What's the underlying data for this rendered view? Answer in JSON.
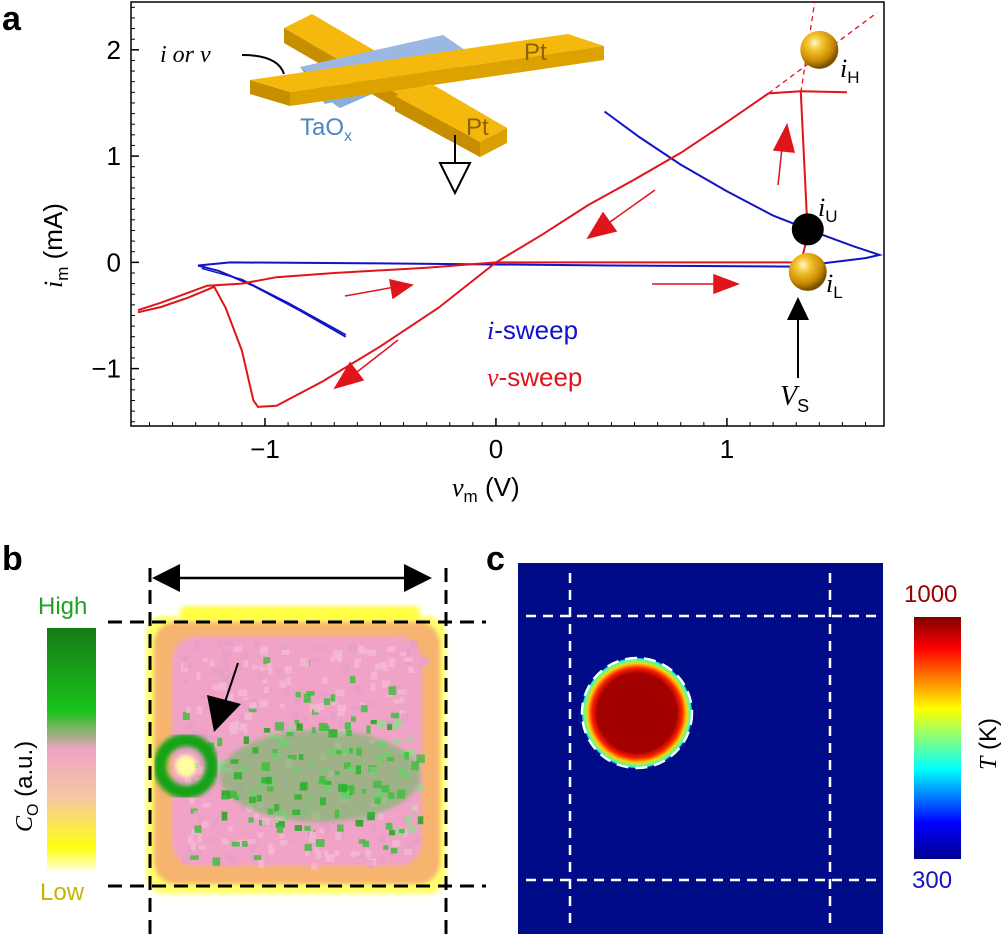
{
  "chart_data": [
    {
      "panel": "a",
      "type": "line",
      "xlabel_sym": "v",
      "xlabel_sub": "m",
      "xlabel_unit": " (V)",
      "ylabel_sym": "i",
      "ylabel_sub": "m",
      "ylabel_unit": " (mA)",
      "xlim": [
        -1.58,
        1.68
      ],
      "ylim": [
        -1.54,
        2.45
      ],
      "xticks": [
        -1,
        0,
        1
      ],
      "xtick_labels": [
        "−1",
        "0",
        "1"
      ],
      "yticks": [
        -1,
        0,
        1,
        2
      ],
      "ytick_labels": [
        "−1",
        "0",
        "1",
        "2"
      ],
      "series": [
        {
          "name": "v-sweep",
          "color": "#e0141b",
          "points": [
            [
              -1.55,
              -0.47
            ],
            [
              -1.45,
              -0.42
            ],
            [
              -1.33,
              -0.33
            ],
            [
              -1.22,
              -0.23
            ],
            [
              -1.17,
              -0.43
            ],
            [
              -1.1,
              -0.83
            ],
            [
              -1.05,
              -1.3
            ],
            [
              -1.03,
              -1.36
            ],
            [
              -0.95,
              -1.35
            ],
            [
              -0.75,
              -1.12
            ],
            [
              -0.5,
              -0.79
            ],
            [
              -0.25,
              -0.43
            ],
            [
              0.0,
              -0.0
            ],
            [
              0.2,
              0.26
            ],
            [
              0.4,
              0.54
            ],
            [
              0.6,
              0.78
            ],
            [
              0.8,
              1.03
            ],
            [
              1.0,
              1.32
            ],
            [
              1.18,
              1.59
            ],
            [
              1.32,
              1.61
            ],
            [
              1.52,
              1.6
            ]
          ],
          "points_return": [
            [
              1.32,
              1.6
            ],
            [
              1.35,
              0.25
            ],
            [
              1.32,
              0.0
            ],
            [
              1.0,
              0.0
            ],
            [
              0.5,
              0.0
            ],
            [
              0.0,
              0.0
            ],
            [
              -0.3,
              -0.05
            ],
            [
              -0.7,
              -0.1
            ],
            [
              -0.95,
              -0.14
            ],
            [
              -1.1,
              -0.2
            ],
            [
              -1.25,
              -0.22
            ],
            [
              -1.45,
              -0.38
            ],
            [
              -1.55,
              -0.45
            ]
          ]
        },
        {
          "name": "i-sweep",
          "color": "#1212c8",
          "points": [
            [
              -0.65,
              -0.7
            ],
            [
              -0.85,
              -0.45
            ],
            [
              -1.05,
              -0.22
            ],
            [
              -1.2,
              -0.08
            ],
            [
              -1.29,
              -0.03
            ],
            [
              -1.15,
              -0.0
            ],
            [
              -0.5,
              -0.01
            ],
            [
              0.5,
              -0.03
            ],
            [
              1.3,
              -0.04
            ],
            [
              1.6,
              0.04
            ],
            [
              1.66,
              0.07
            ],
            [
              1.55,
              0.15
            ],
            [
              1.4,
              0.27
            ],
            [
              1.2,
              0.44
            ],
            [
              1.0,
              0.67
            ],
            [
              0.8,
              0.92
            ],
            [
              0.62,
              1.18
            ],
            [
              0.47,
              1.42
            ]
          ],
          "points_return": [
            [
              -0.65,
              -0.68
            ],
            [
              -0.9,
              -0.38
            ],
            [
              -1.1,
              -0.16
            ],
            [
              -1.27,
              -0.06
            ],
            [
              -1.26,
              -0.04
            ]
          ]
        }
      ],
      "extensions": [
        [
          1.18,
          1.59
        ],
        [
          1.65,
          2.35
        ],
        [
          1.32,
          1.6
        ],
        [
          1.38,
          2.45
        ]
      ],
      "markers": [
        {
          "id": "iH",
          "sym": "i",
          "sub": "H",
          "x": 1.4,
          "y": 2.0,
          "style": "gold"
        },
        {
          "id": "iU",
          "sym": "i",
          "sub": "U",
          "x": 1.35,
          "y": 0.31,
          "style": "black"
        },
        {
          "id": "iL",
          "sym": "i",
          "sub": "L",
          "x": 1.35,
          "y": -0.09,
          "style": "gold"
        }
      ],
      "vs_label_sym": "V",
      "vs_label_sub": "S",
      "legend": [
        {
          "sym": "i",
          "rest": "-sweep",
          "color": "#1212c8"
        },
        {
          "sym": "v",
          "rest": "-sweep",
          "color": "#e0141b"
        }
      ],
      "inset": {
        "electrode_top": "Pt",
        "electrode_bottom": "Pt",
        "oxide": "TaO",
        "oxide_sub": "x",
        "source_label": "i or v"
      }
    },
    {
      "panel": "b",
      "type": "heatmap",
      "colorbar_title_sym": "C",
      "colorbar_title_sub": "O",
      "colorbar_title_rest": " (a.u.)",
      "colorbar_high": "High",
      "colorbar_low": "Low",
      "colormap": [
        "#ffff10",
        "#f5b6a0",
        "#f0a3c6",
        "#19c319",
        "#157a15"
      ]
    },
    {
      "panel": "c",
      "type": "heatmap",
      "colorbar_title_sym": "T",
      "colorbar_title_rest": " (K)",
      "colorbar_max": "1000",
      "colorbar_min": "300",
      "background": "#000c87",
      "hot": "#a00000",
      "colormap": [
        "#00008f",
        "#0000ff",
        "#00ffff",
        "#ffff00",
        "#ff0000",
        "#800000"
      ]
    }
  ],
  "panel_labels": {
    "a": "a",
    "b": "b",
    "c": "c"
  },
  "colors": {
    "red": "#e0141b",
    "blue": "#1212c8",
    "pt_gold": "#f5b90d",
    "tao_blue": "#8aaedb",
    "tao_text": "#4d86c6",
    "pt_text": "#8a6200",
    "colorbar_high_text": "#22a022",
    "colorbar_low_text": "#c8b400",
    "colorbar_max_text": "#9b0000",
    "colorbar_min_text": "#1212c8"
  }
}
